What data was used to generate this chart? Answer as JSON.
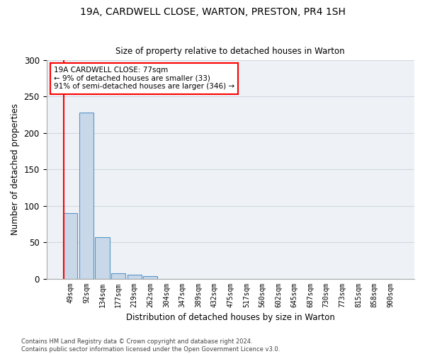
{
  "title_line1": "19A, CARDWELL CLOSE, WARTON, PRESTON, PR4 1SH",
  "title_line2": "Size of property relative to detached houses in Warton",
  "xlabel": "Distribution of detached houses by size in Warton",
  "ylabel": "Number of detached properties",
  "bin_labels": [
    "49sqm",
    "92sqm",
    "134sqm",
    "177sqm",
    "219sqm",
    "262sqm",
    "304sqm",
    "347sqm",
    "389sqm",
    "432sqm",
    "475sqm",
    "517sqm",
    "560sqm",
    "602sqm",
    "645sqm",
    "687sqm",
    "730sqm",
    "773sqm",
    "815sqm",
    "858sqm",
    "900sqm"
  ],
  "bar_heights": [
    90,
    228,
    57,
    7,
    5,
    3,
    0,
    0,
    0,
    0,
    0,
    0,
    0,
    0,
    0,
    0,
    0,
    0,
    0,
    0,
    0
  ],
  "bar_color": "#c8d8e8",
  "bar_edge_color": "#5a96c8",
  "ylim": [
    0,
    300
  ],
  "yticks": [
    0,
    50,
    100,
    150,
    200,
    250,
    300
  ],
  "annotation_text": "19A CARDWELL CLOSE: 77sqm\n← 9% of detached houses are smaller (33)\n91% of semi-detached houses are larger (346) →",
  "annotation_box_color": "white",
  "annotation_box_edge_color": "red",
  "vline_color": "red",
  "background_color": "#eef2f7",
  "grid_color": "#d0d8e0",
  "footnote": "Contains HM Land Registry data © Crown copyright and database right 2024.\nContains public sector information licensed under the Open Government Licence v3.0."
}
